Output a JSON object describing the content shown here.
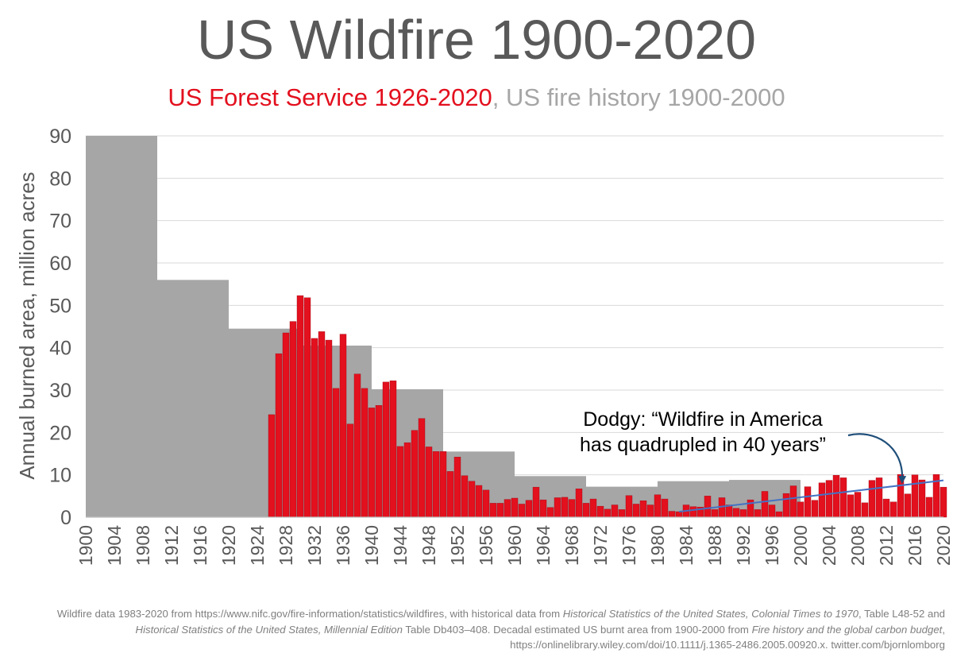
{
  "chart_data": {
    "title": "US Wildfire 1900-2020",
    "subtitle": {
      "part1": "US Forest Service 1926-2020",
      "sep": ",",
      "part2": "US fire history 1900-2000"
    },
    "type": "bar",
    "ylabel": "Annual burned area, million acres",
    "ylim": [
      0,
      90
    ],
    "yticks": [
      0,
      10,
      20,
      30,
      40,
      50,
      60,
      70,
      80,
      90
    ],
    "xticks": [
      "1900",
      "1904",
      "1908",
      "1912",
      "1916",
      "1920",
      "1924",
      "1928",
      "1932",
      "1936",
      "1940",
      "1944",
      "1948",
      "1952",
      "1956",
      "1960",
      "1964",
      "1968",
      "1972",
      "1976",
      "1980",
      "1984",
      "1988",
      "1992",
      "1996",
      "2000",
      "2004",
      "2008",
      "2012",
      "2016",
      "2020"
    ],
    "xrange": [
      1900,
      2020
    ],
    "grid": true,
    "colors": {
      "usfs": "#e3101e",
      "history": "#a6a6a6",
      "trend": "#4472c4",
      "arrow": "#1f4e79",
      "axis_text": "#595959"
    },
    "series": [
      {
        "name": "US fire history 1900-2000",
        "kind": "decadal",
        "segments": [
          {
            "start": 1900,
            "end": 1910,
            "value": 90
          },
          {
            "start": 1910,
            "end": 1920,
            "value": 56
          },
          {
            "start": 1920,
            "end": 1930,
            "value": 44.5
          },
          {
            "start": 1930,
            "end": 1940,
            "value": 40.5
          },
          {
            "start": 1940,
            "end": 1950,
            "value": 30.2
          },
          {
            "start": 1950,
            "end": 1960,
            "value": 15.5
          },
          {
            "start": 1960,
            "end": 1970,
            "value": 9.7
          },
          {
            "start": 1970,
            "end": 1980,
            "value": 7.2
          },
          {
            "start": 1980,
            "end": 1990,
            "value": 8.5
          },
          {
            "start": 1990,
            "end": 2000,
            "value": 8.8
          }
        ]
      },
      {
        "name": "US Forest Service 1926-2020",
        "kind": "annual",
        "start_year": 1926,
        "values": [
          24.2,
          38.6,
          43.5,
          46.2,
          52.3,
          51.8,
          42.2,
          43.8,
          41.8,
          30.4,
          43.2,
          22.0,
          33.8,
          30.4,
          25.8,
          26.4,
          31.9,
          32.2,
          16.7,
          17.6,
          20.5,
          23.3,
          16.6,
          15.5,
          15.5,
          10.8,
          14.2,
          9.8,
          8.5,
          7.5,
          6.4,
          3.3,
          3.3,
          4.2,
          4.5,
          3.1,
          4.0,
          7.1,
          4.1,
          2.3,
          4.6,
          4.7,
          4.2,
          6.7,
          3.3,
          4.3,
          2.6,
          1.9,
          2.9,
          1.8,
          5.1,
          3.1,
          3.9,
          2.9,
          5.3,
          4.3,
          1.4,
          1.3,
          2.9,
          2.5,
          2.4,
          5.0,
          1.8,
          4.6,
          2.9,
          2.1,
          1.8,
          4.1,
          1.8,
          6.1,
          2.9,
          1.3,
          5.6,
          7.4,
          3.6,
          7.2,
          4.0,
          8.1,
          8.7,
          9.9,
          9.3,
          5.3,
          5.9,
          3.4,
          8.7,
          9.3,
          4.3,
          3.6,
          10.1,
          5.5,
          10.0,
          8.8,
          4.7,
          10.1,
          7.1
        ]
      }
    ],
    "trendline": {
      "from": [
        1983,
        1.3
      ],
      "to": [
        2020,
        8.7
      ]
    },
    "annotation": {
      "line1": "Dodgy: “Wildfire in America",
      "line2": "has quadrupled in 40 years”",
      "target_year": 2014
    }
  },
  "footnote": {
    "a": "Wildfire data 1983-2020 from https://www.nifc.gov/fire-information/statistics/wildfires, with historical data from ",
    "b": "Historical Statistics of the United States, Colonial Times to 1970",
    "c": ", Table L48-52 and ",
    "d": "Historical Statistics of the United States, Millennial Edition",
    "e": " Table Db403–408. Decadal estimated US burnt area from 1900-2000 from ",
    "f": "Fire history and the global carbon budget",
    "g": ", https://onlinelibrary.wiley.com/doi/10.1111/j.1365-2486.2005.00920.x. twitter.com/bjornlomborg"
  }
}
